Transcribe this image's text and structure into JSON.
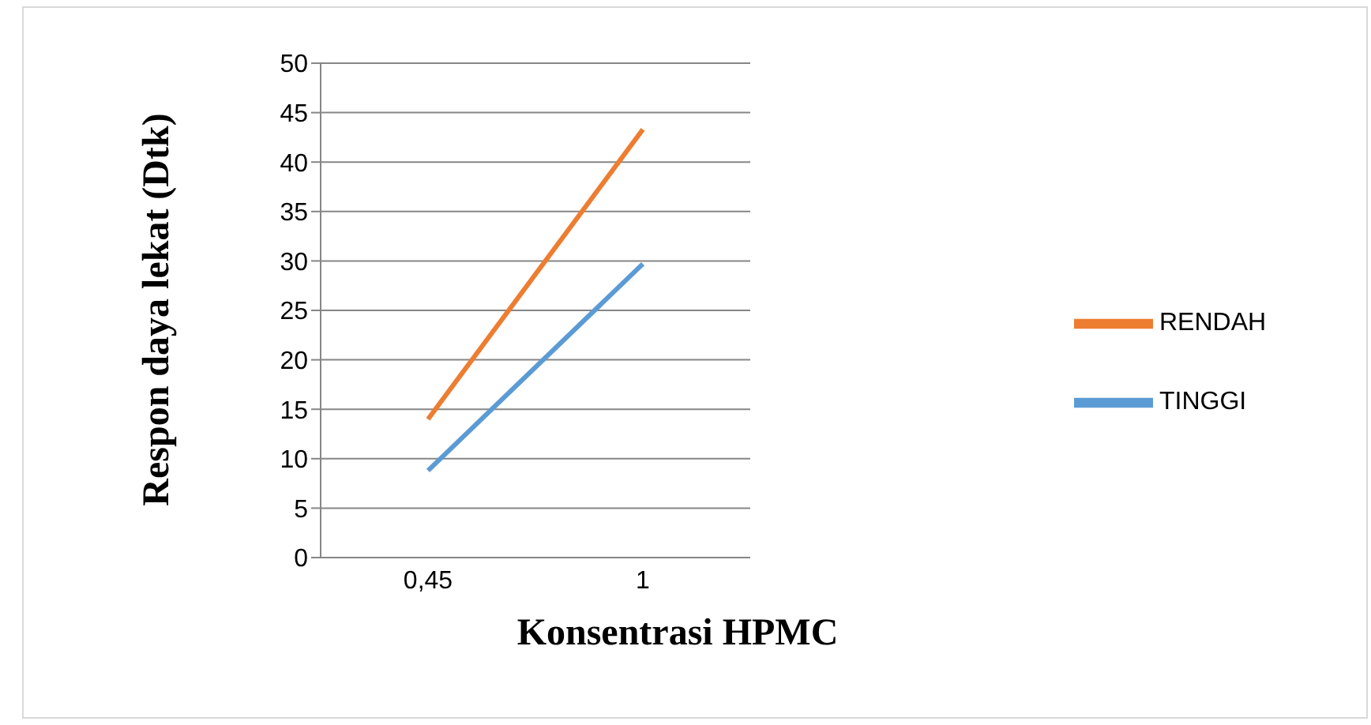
{
  "chart_data": {
    "type": "line",
    "xlabel": "Konsentrasi HPMC",
    "ylabel": "Respon daya lekat (Dtk)",
    "categories": [
      "0,45",
      "1"
    ],
    "series": [
      {
        "name": "RENDAH",
        "color": "#ed7d31",
        "values": [
          14,
          43.3
        ]
      },
      {
        "name": "TINGGI",
        "color": "#5b9bd5",
        "values": [
          8.8,
          29.7
        ]
      }
    ],
    "ylim": [
      0,
      50
    ],
    "yticks": [
      0,
      5,
      10,
      15,
      20,
      25,
      30,
      35,
      40,
      45,
      50
    ],
    "grid": "y",
    "legend": "right",
    "marker": "none",
    "line_style": "solid"
  }
}
